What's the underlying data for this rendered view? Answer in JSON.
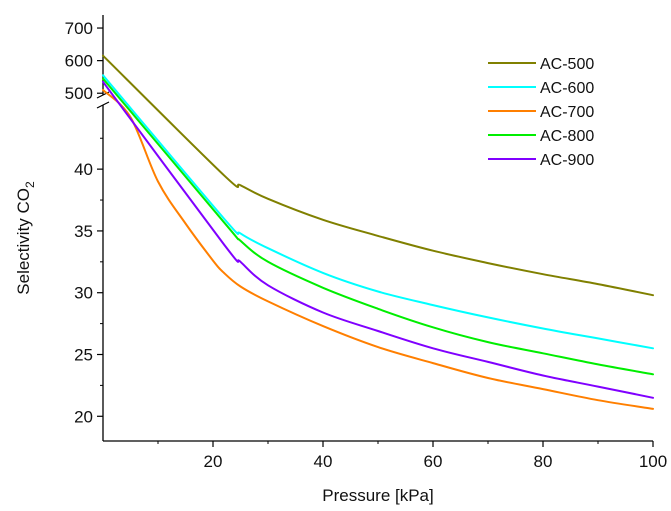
{
  "chart_data": {
    "type": "line",
    "xlabel": "Pressure [kPa]",
    "ylabel": "Selectivity CO",
    "ylabel_subscript": "2",
    "xlim": [
      0,
      100
    ],
    "ylim_lower": [
      18,
      46
    ],
    "ylim_upper": [
      470,
      740
    ],
    "axis_break": true,
    "x_ticks": [
      20,
      40,
      60,
      80,
      100
    ],
    "y_ticks_lower": [
      20,
      25,
      30,
      35,
      40
    ],
    "y_ticks_upper": [
      500,
      600,
      700
    ],
    "grid": false,
    "legend_position": "top-right",
    "series": [
      {
        "name": "AC-500",
        "color": "#808000",
        "x": [
          0,
          22,
          25,
          30,
          40,
          50,
          60,
          70,
          80,
          90,
          100
        ],
        "y": [
          615,
          39.5,
          38.7,
          37.6,
          35.9,
          34.6,
          33.4,
          32.4,
          31.5,
          30.7,
          29.8
        ]
      },
      {
        "name": "AC-600",
        "color": "#00ffff",
        "x": [
          0,
          22,
          25,
          30,
          40,
          50,
          60,
          70,
          80,
          90,
          100
        ],
        "y": [
          555,
          36.0,
          34.8,
          33.6,
          31.6,
          30.1,
          29.0,
          28.0,
          27.1,
          26.3,
          25.5
        ]
      },
      {
        "name": "AC-700",
        "color": "#ff7f00",
        "x": [
          0,
          5,
          10,
          15,
          20,
          22,
          25,
          30,
          40,
          50,
          60,
          70,
          80,
          90,
          100
        ],
        "y": [
          510,
          44.2,
          39.0,
          35.6,
          32.6,
          31.6,
          30.5,
          29.3,
          27.3,
          25.6,
          24.3,
          23.1,
          22.2,
          21.3,
          20.6
        ]
      },
      {
        "name": "AC-800",
        "color": "#00ee00",
        "x": [
          0,
          22,
          25,
          30,
          40,
          50,
          60,
          70,
          80,
          90,
          100
        ],
        "y": [
          545,
          35.7,
          34.2,
          32.5,
          30.4,
          28.7,
          27.2,
          26.0,
          25.1,
          24.2,
          23.4
        ]
      },
      {
        "name": "AC-900",
        "color": "#8000ff",
        "x": [
          0,
          22,
          25,
          30,
          40,
          50,
          60,
          70,
          80,
          90,
          100
        ],
        "y": [
          535,
          33.9,
          32.5,
          30.6,
          28.4,
          26.9,
          25.5,
          24.4,
          23.3,
          22.4,
          21.5
        ]
      }
    ]
  }
}
